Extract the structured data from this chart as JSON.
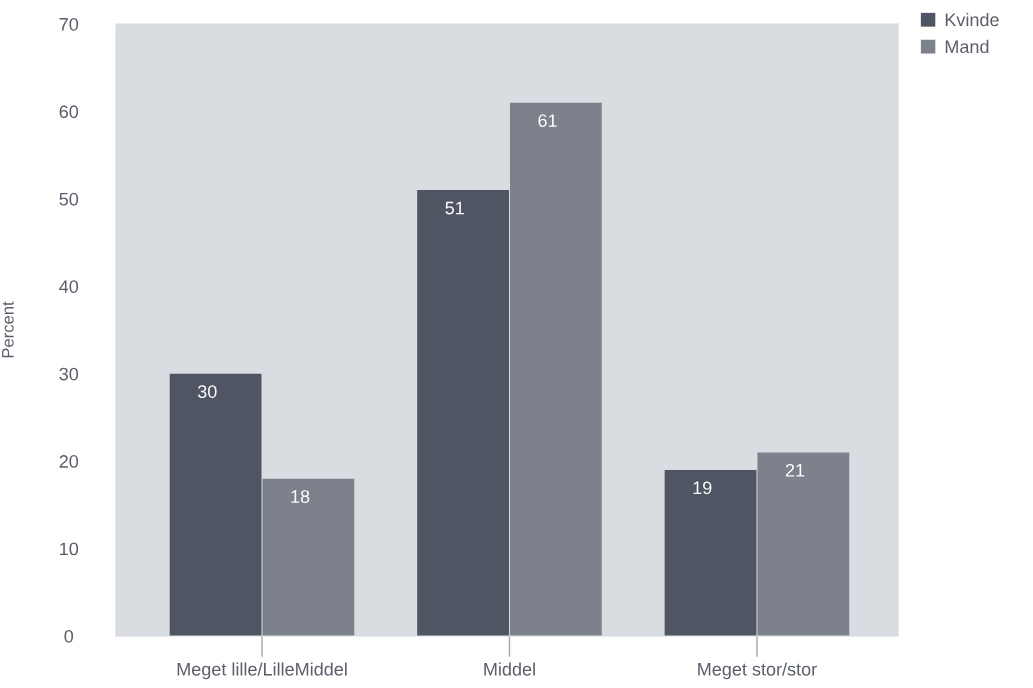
{
  "chart_data": {
    "type": "bar",
    "ylabel": "Percent",
    "categories": [
      "Meget lille/LilleMiddel",
      "Middel",
      "Meget stor/stor"
    ],
    "series": [
      {
        "name": "Kvinde",
        "color": "#4f5563",
        "values": [
          30,
          51,
          19
        ]
      },
      {
        "name": "Mand",
        "color": "#7c818c",
        "values": [
          18,
          61,
          21
        ]
      }
    ],
    "ylim": [
      0,
      70
    ],
    "yticks": [
      0,
      10,
      20,
      30,
      40,
      50,
      60,
      70
    ],
    "data_labels": true,
    "legend": "top right",
    "grid": false
  }
}
